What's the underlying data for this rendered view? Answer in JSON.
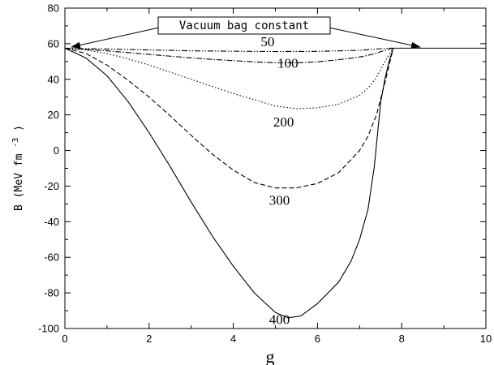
{
  "chart_data": {
    "type": "line",
    "xlabel": "g",
    "ylabel": "B",
    "ylabel_unit": "(MeV fm",
    "ylabel_exp": "-3",
    "ylabel_close": ")",
    "xlim": [
      0,
      10
    ],
    "ylim": [
      -100,
      80
    ],
    "xticks": [
      0,
      2,
      4,
      6,
      8,
      10
    ],
    "yticks": [
      -100,
      -80,
      -60,
      -40,
      -20,
      0,
      20,
      40,
      60,
      80
    ],
    "xtick_labels": [
      "0",
      "2",
      "4",
      "6",
      "8",
      "10"
    ],
    "ytick_labels": [
      "-100",
      "-80",
      "-60",
      "-40",
      "-20",
      "0",
      "20",
      "40",
      "60",
      "80"
    ],
    "grid": false,
    "annotation": {
      "text": "Vacuum bag constant",
      "arrows_to": [
        [
          0.15,
          57.5
        ],
        [
          8.45,
          57.5
        ]
      ]
    },
    "horizontal_line": {
      "y": 57.5,
      "from_x": 7.8,
      "to_x": 10
    },
    "series": [
      {
        "label": "50",
        "label_pos": [
          4.65,
          58.5
        ],
        "dash": "dashdotdot",
        "x": [
          0,
          1,
          2,
          3,
          4,
          5,
          6,
          7,
          7.4,
          7.7,
          7.8
        ],
        "y": [
          57.5,
          57.0,
          56.5,
          56.0,
          55.8,
          55.6,
          55.7,
          56.3,
          57.0,
          57.5,
          57.5
        ]
      },
      {
        "label": "100",
        "label_pos": [
          5.05,
          46.5
        ],
        "dash": "dashdot",
        "x": [
          0,
          0.5,
          1,
          1.5,
          2,
          2.5,
          3,
          3.5,
          4,
          4.5,
          5,
          5.5,
          6,
          6.5,
          7,
          7.3,
          7.5,
          7.7,
          7.8
        ],
        "y": [
          57.5,
          56.8,
          56.0,
          55.0,
          54.0,
          53.0,
          52.0,
          51.2,
          50.5,
          49.8,
          49.3,
          49.3,
          49.8,
          51.0,
          52.5,
          54.0,
          55.5,
          57.0,
          57.5
        ]
      },
      {
        "label": "200",
        "label_pos": [
          4.95,
          13.5
        ],
        "dash": "dotted",
        "x": [
          0,
          0.5,
          1,
          1.5,
          2,
          2.5,
          3,
          3.5,
          4,
          4.5,
          5,
          5.5,
          6,
          6.5,
          7,
          7.2,
          7.4,
          7.6,
          7.8
        ],
        "y": [
          57.5,
          56.5,
          54.5,
          51.5,
          48.0,
          44.0,
          40.0,
          36.0,
          32.0,
          28.5,
          25.0,
          23.5,
          24.0,
          26.0,
          31.0,
          35.0,
          41.0,
          50.0,
          57.5
        ]
      },
      {
        "label": "300",
        "label_pos": [
          4.85,
          -30.5
        ],
        "dash": "dashed",
        "x": [
          0,
          0.5,
          1,
          1.5,
          2,
          2.5,
          3,
          3.5,
          4,
          4.5,
          5,
          5.5,
          6,
          6.5,
          7,
          7.2,
          7.4,
          7.6,
          7.8
        ],
        "y": [
          57.5,
          54.5,
          48.0,
          39.5,
          30.0,
          19.5,
          8.5,
          -2.0,
          -11.0,
          -18.0,
          -21.0,
          -21.0,
          -18.5,
          -12.5,
          0.0,
          8.0,
          20.0,
          38.0,
          57.5
        ]
      },
      {
        "label": "400",
        "label_pos": [
          4.85,
          -97.5
        ],
        "dash": "solid",
        "x": [
          0,
          0.5,
          1,
          1.5,
          2,
          2.5,
          3,
          3.5,
          4,
          4.5,
          5,
          5.3,
          5.6,
          6,
          6.5,
          6.8,
          7.0,
          7.2,
          7.35,
          7.5,
          7.6,
          7.7,
          7.8
        ],
        "y": [
          57.5,
          52.0,
          42.0,
          27.5,
          10.0,
          -9.0,
          -29.0,
          -48.0,
          -65.0,
          -80.0,
          -91.0,
          -94.0,
          -93.0,
          -86.0,
          -74.0,
          -62.0,
          -50.0,
          -33.0,
          -9.0,
          27.0,
          40.0,
          50.0,
          57.5
        ]
      }
    ]
  }
}
